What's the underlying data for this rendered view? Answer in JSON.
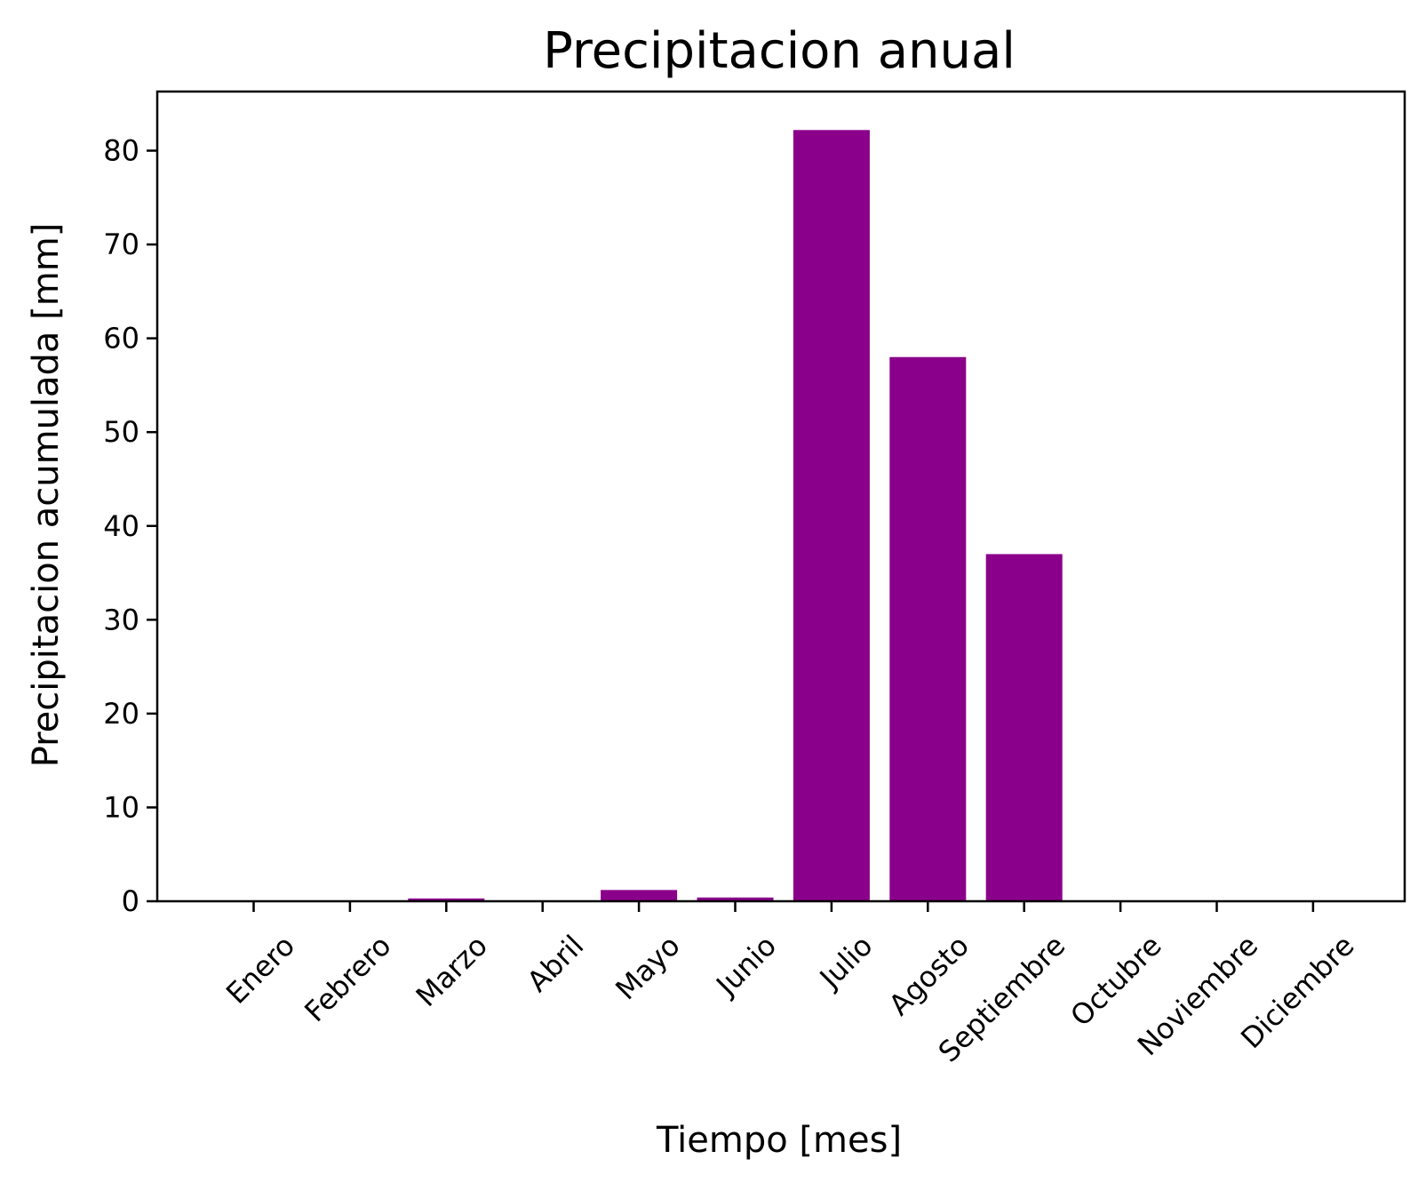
{
  "chart_data": {
    "type": "bar",
    "title": "Precipitacion anual",
    "xlabel": "Tiempo [mes]",
    "ylabel": "Precipitacion acumulada [mm]",
    "categories": [
      "Enero",
      "Febrero",
      "Marzo",
      "Abril",
      "Mayo",
      "Junio",
      "Julio",
      "Agosto",
      "Septiembre",
      "Octubre",
      "Noviembre",
      "Diciembre"
    ],
    "values": [
      0,
      0,
      0.3,
      0,
      1.2,
      0.4,
      82.2,
      58.0,
      37.0,
      0,
      0,
      0
    ],
    "ylim": [
      0,
      86.3
    ],
    "yticks": [
      0,
      10,
      20,
      30,
      40,
      50,
      60,
      70,
      80
    ],
    "ytick_labels": [
      "0",
      "10",
      "20",
      "30",
      "40",
      "50",
      "60",
      "70",
      "80"
    ],
    "bar_color": "#8b008b",
    "grid": false,
    "legend": false
  }
}
